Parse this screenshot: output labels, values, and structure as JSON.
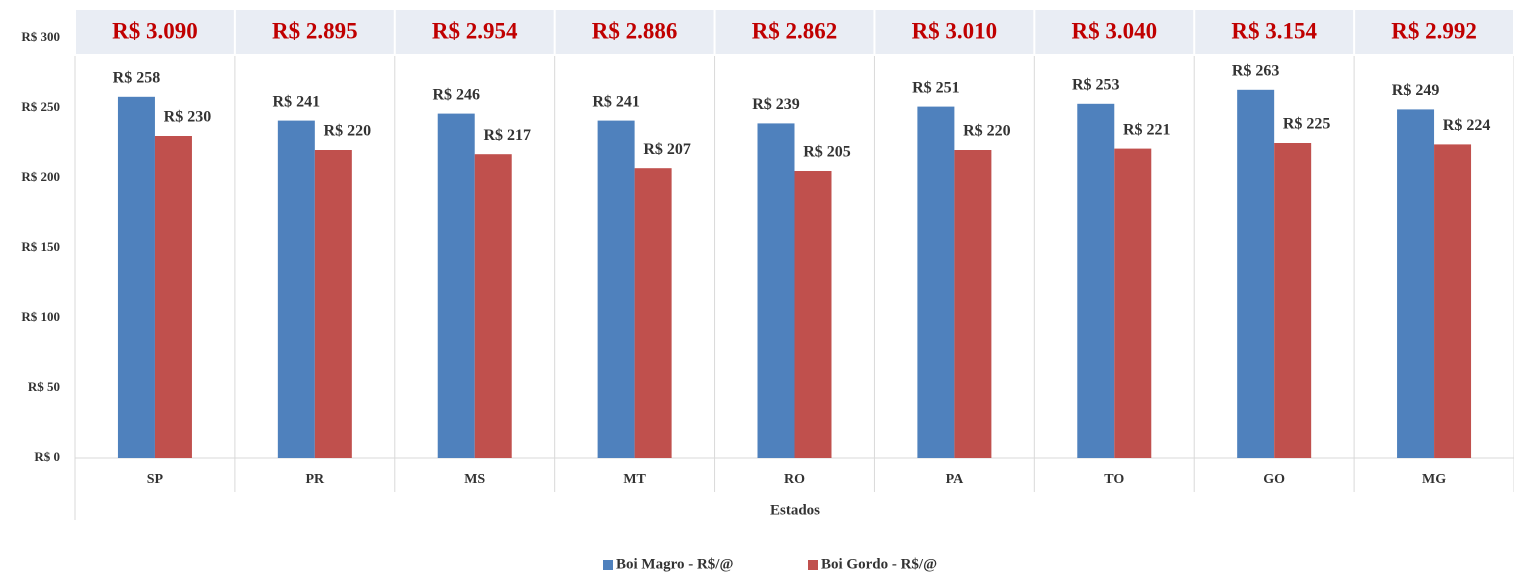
{
  "chart_data": {
    "type": "bar",
    "x_label": "Estados",
    "categories": [
      "SP",
      "PR",
      "MS",
      "MT",
      "RO",
      "PA",
      "TO",
      "GO",
      "MG"
    ],
    "series": [
      {
        "name": "Boi Magro - R$/@",
        "color": "#4f81bd",
        "values": [
          258,
          241,
          246,
          241,
          239,
          251,
          253,
          263,
          249
        ],
        "value_labels": [
          "R$ 258",
          "R$ 241",
          "R$ 246",
          "R$ 241",
          "R$ 239",
          "R$ 251",
          "R$ 253",
          "R$ 263",
          "R$ 249"
        ]
      },
      {
        "name": "Boi Gordo - R$/@",
        "color": "#c0504d",
        "values": [
          230,
          220,
          217,
          207,
          205,
          220,
          221,
          225,
          224
        ],
        "value_labels": [
          "R$ 230",
          "R$ 220",
          "R$ 217",
          "R$ 207",
          "R$ 205",
          "R$ 220",
          "R$ 221",
          "R$ 225",
          "R$ 224"
        ]
      }
    ],
    "header_values": [
      3090,
      2895,
      2954,
      2886,
      2862,
      3010,
      3040,
      3154,
      2992
    ],
    "header_labels": [
      "R$ 3.090",
      "R$ 2.895",
      "R$ 2.954",
      "R$ 2.886",
      "R$ 2.862",
      "R$ 3.010",
      "R$ 3.040",
      "R$ 3.154",
      "R$ 2.992"
    ],
    "header_color": "#c00000",
    "ylim": [
      0,
      300
    ],
    "yticks": [
      {
        "value": 0,
        "label": "R$ 0"
      },
      {
        "value": 50,
        "label": "R$ 50"
      },
      {
        "value": 100,
        "label": "R$ 100"
      },
      {
        "value": 150,
        "label": "R$ 150"
      },
      {
        "value": 200,
        "label": "R$ 200"
      },
      {
        "value": 250,
        "label": "R$ 250"
      },
      {
        "value": 300,
        "label": "R$ 300"
      }
    ],
    "legend": "bottom"
  }
}
